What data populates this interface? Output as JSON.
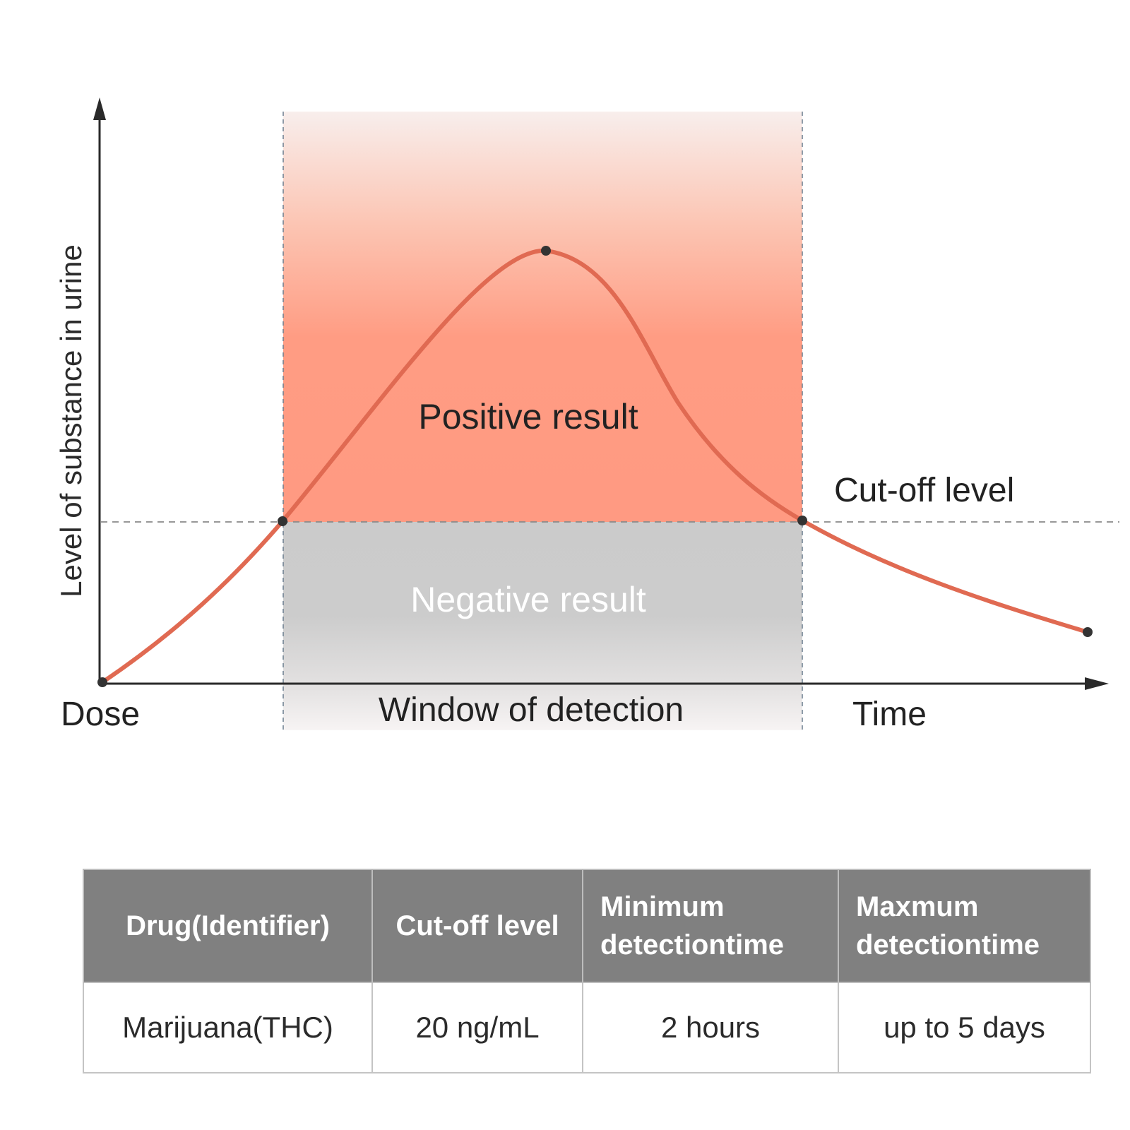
{
  "diagram": {
    "y_axis_label": "Level of substance in urine",
    "x_start_label": "Dose",
    "x_end_label": "Time",
    "window_label": "Window of detection",
    "positive_label": "Positive result",
    "negative_label": "Negative result",
    "cutoff_label": "Cut-off level",
    "colors": {
      "curve": "#e06a52",
      "positive_zone": "#ff9a82",
      "negative_zone": "#cccccc",
      "axis": "#2a2a2a"
    }
  },
  "table": {
    "headers": {
      "drug": "Drug(Identifier)",
      "cutoff": "Cut-off level",
      "min_line1": "Minimum",
      "min_line2": "detectiontime",
      "max_line1": "Maxmum",
      "max_line2": "detectiontime"
    },
    "row": {
      "drug": "Marijuana(THC)",
      "cutoff": "20 ng/mL",
      "min_time": "2 hours",
      "max_time": "up to 5 days"
    }
  }
}
